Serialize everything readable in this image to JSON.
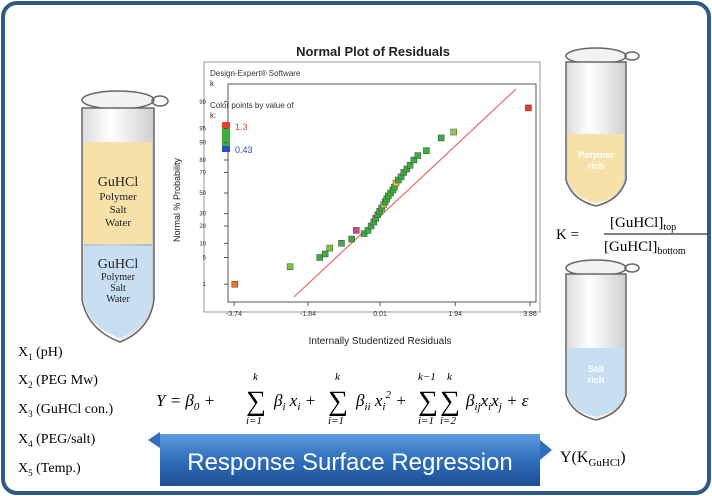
{
  "plot": {
    "title": "Normal Plot of Residuals",
    "software": "Design-Expert® Software",
    "response": "k",
    "color_by": "Color points by value of",
    "color_by_var": "k:",
    "color_high": "1.3",
    "color_low": "0.43",
    "xlabel": "Internally Studentized Residuals",
    "ylabel": "Normal % Probability",
    "colors": {
      "high": "#e8402a",
      "low": "#2a4cc8",
      "mid": "#3cae3c",
      "fit_line": "#e86a6a"
    }
  },
  "chart_data": {
    "type": "scatter",
    "title": "Normal Plot of Residuals",
    "xlabel": "Internally Studentized Residuals",
    "ylabel": "Normal % Probability",
    "x_ticks": [
      "-3.74",
      "-1.84",
      "0.01",
      "1.94",
      "3.86"
    ],
    "y_ticks": [
      "1",
      "5",
      "10",
      "20",
      "30",
      "50",
      "70",
      "80",
      "90",
      "95",
      "99"
    ],
    "xlim": [
      -3.74,
      3.86
    ],
    "y_scale": "normal-probability",
    "grid": false,
    "series": [
      {
        "points": [
          {
            "x": -3.72,
            "y": 1,
            "color": "#e8732a"
          },
          {
            "x": -2.3,
            "y": 3,
            "color": "#7ac83a"
          },
          {
            "x": -1.54,
            "y": 5,
            "color": "#3cae3c"
          },
          {
            "x": -1.4,
            "y": 6,
            "color": "#3cae3c"
          },
          {
            "x": -1.28,
            "y": 8,
            "color": "#7ac83a"
          },
          {
            "x": -0.98,
            "y": 10,
            "color": "#3cae3c"
          },
          {
            "x": -0.72,
            "y": 12,
            "color": "#3cae3c"
          },
          {
            "x": -0.6,
            "y": 17,
            "color": "#c84a8a"
          },
          {
            "x": -0.4,
            "y": 15,
            "color": "#3cae3c"
          },
          {
            "x": -0.3,
            "y": 17,
            "color": "#3cae3c"
          },
          {
            "x": -0.22,
            "y": 20,
            "color": "#3cae3c"
          },
          {
            "x": -0.15,
            "y": 23,
            "color": "#3cae3c"
          },
          {
            "x": -0.1,
            "y": 26,
            "color": "#3cae3c"
          },
          {
            "x": -0.05,
            "y": 29,
            "color": "#3cae3c"
          },
          {
            "x": 0.0,
            "y": 32,
            "color": "#3cae3c"
          },
          {
            "x": 0.05,
            "y": 35,
            "color": "#3cae3c"
          },
          {
            "x": 0.1,
            "y": 38,
            "color": "#8ccf3a"
          },
          {
            "x": 0.14,
            "y": 41,
            "color": "#3cae3c"
          },
          {
            "x": 0.18,
            "y": 44,
            "color": "#3cae3c"
          },
          {
            "x": 0.22,
            "y": 47,
            "color": "#3cae3c"
          },
          {
            "x": 0.28,
            "y": 50,
            "color": "#3cae3c"
          },
          {
            "x": 0.34,
            "y": 53,
            "color": "#3cae3c"
          },
          {
            "x": 0.38,
            "y": 56,
            "color": "#3cae3c"
          },
          {
            "x": 0.42,
            "y": 60,
            "color": "#e8c03a"
          },
          {
            "x": 0.48,
            "y": 63,
            "color": "#3cae3c"
          },
          {
            "x": 0.55,
            "y": 66,
            "color": "#3cae3c"
          },
          {
            "x": 0.62,
            "y": 70,
            "color": "#3cae3c"
          },
          {
            "x": 0.7,
            "y": 73,
            "color": "#3cae3c"
          },
          {
            "x": 0.78,
            "y": 76,
            "color": "#3cae3c"
          },
          {
            "x": 0.88,
            "y": 80,
            "color": "#3cae3c"
          },
          {
            "x": 0.98,
            "y": 83,
            "color": "#3cae3c"
          },
          {
            "x": 1.2,
            "y": 86,
            "color": "#3cae3c"
          },
          {
            "x": 1.58,
            "y": 92,
            "color": "#3cae3c"
          },
          {
            "x": 1.9,
            "y": 94,
            "color": "#8ccf3a"
          },
          {
            "x": 3.82,
            "y": 98.5,
            "color": "#d8402a"
          }
        ]
      }
    ]
  },
  "variables": [
    "X1 (pH)",
    "X2 (PEG Mw)",
    "X3 (GuHCl con.)",
    "X4 (PEG/salt)",
    "X5 (Temp.)"
  ],
  "left_tube": {
    "top_phase": [
      "GuHCl",
      "Polymer",
      "Salt",
      "Water"
    ],
    "bottom_phase": [
      "GuHCl",
      "Polymer",
      "Salt",
      "Water"
    ]
  },
  "right_tube_top": {
    "label": [
      "Polymer",
      "rich"
    ]
  },
  "right_tube_bottom": {
    "label": [
      "Salt",
      "rich"
    ]
  },
  "k_formula": {
    "lhs": "K =",
    "numerator": "[GuHCl]",
    "num_sub": "top",
    "denominator": "[GuHCl]",
    "den_sub": "bottom"
  },
  "equation": "Y = β0 + Σ βi xi + Σ βii xi² + ΣΣ βij xi xj + ε",
  "banner": {
    "text": "Response Surface Regression",
    "color": "#2e6fb8"
  },
  "output": {
    "label": "Y(K",
    "sub": "GuHCl",
    "close": ")"
  },
  "colors": {
    "frame": "#2d5a87",
    "upper_phase": "#f6e2a8",
    "lower_phase": "#c8dff2"
  }
}
